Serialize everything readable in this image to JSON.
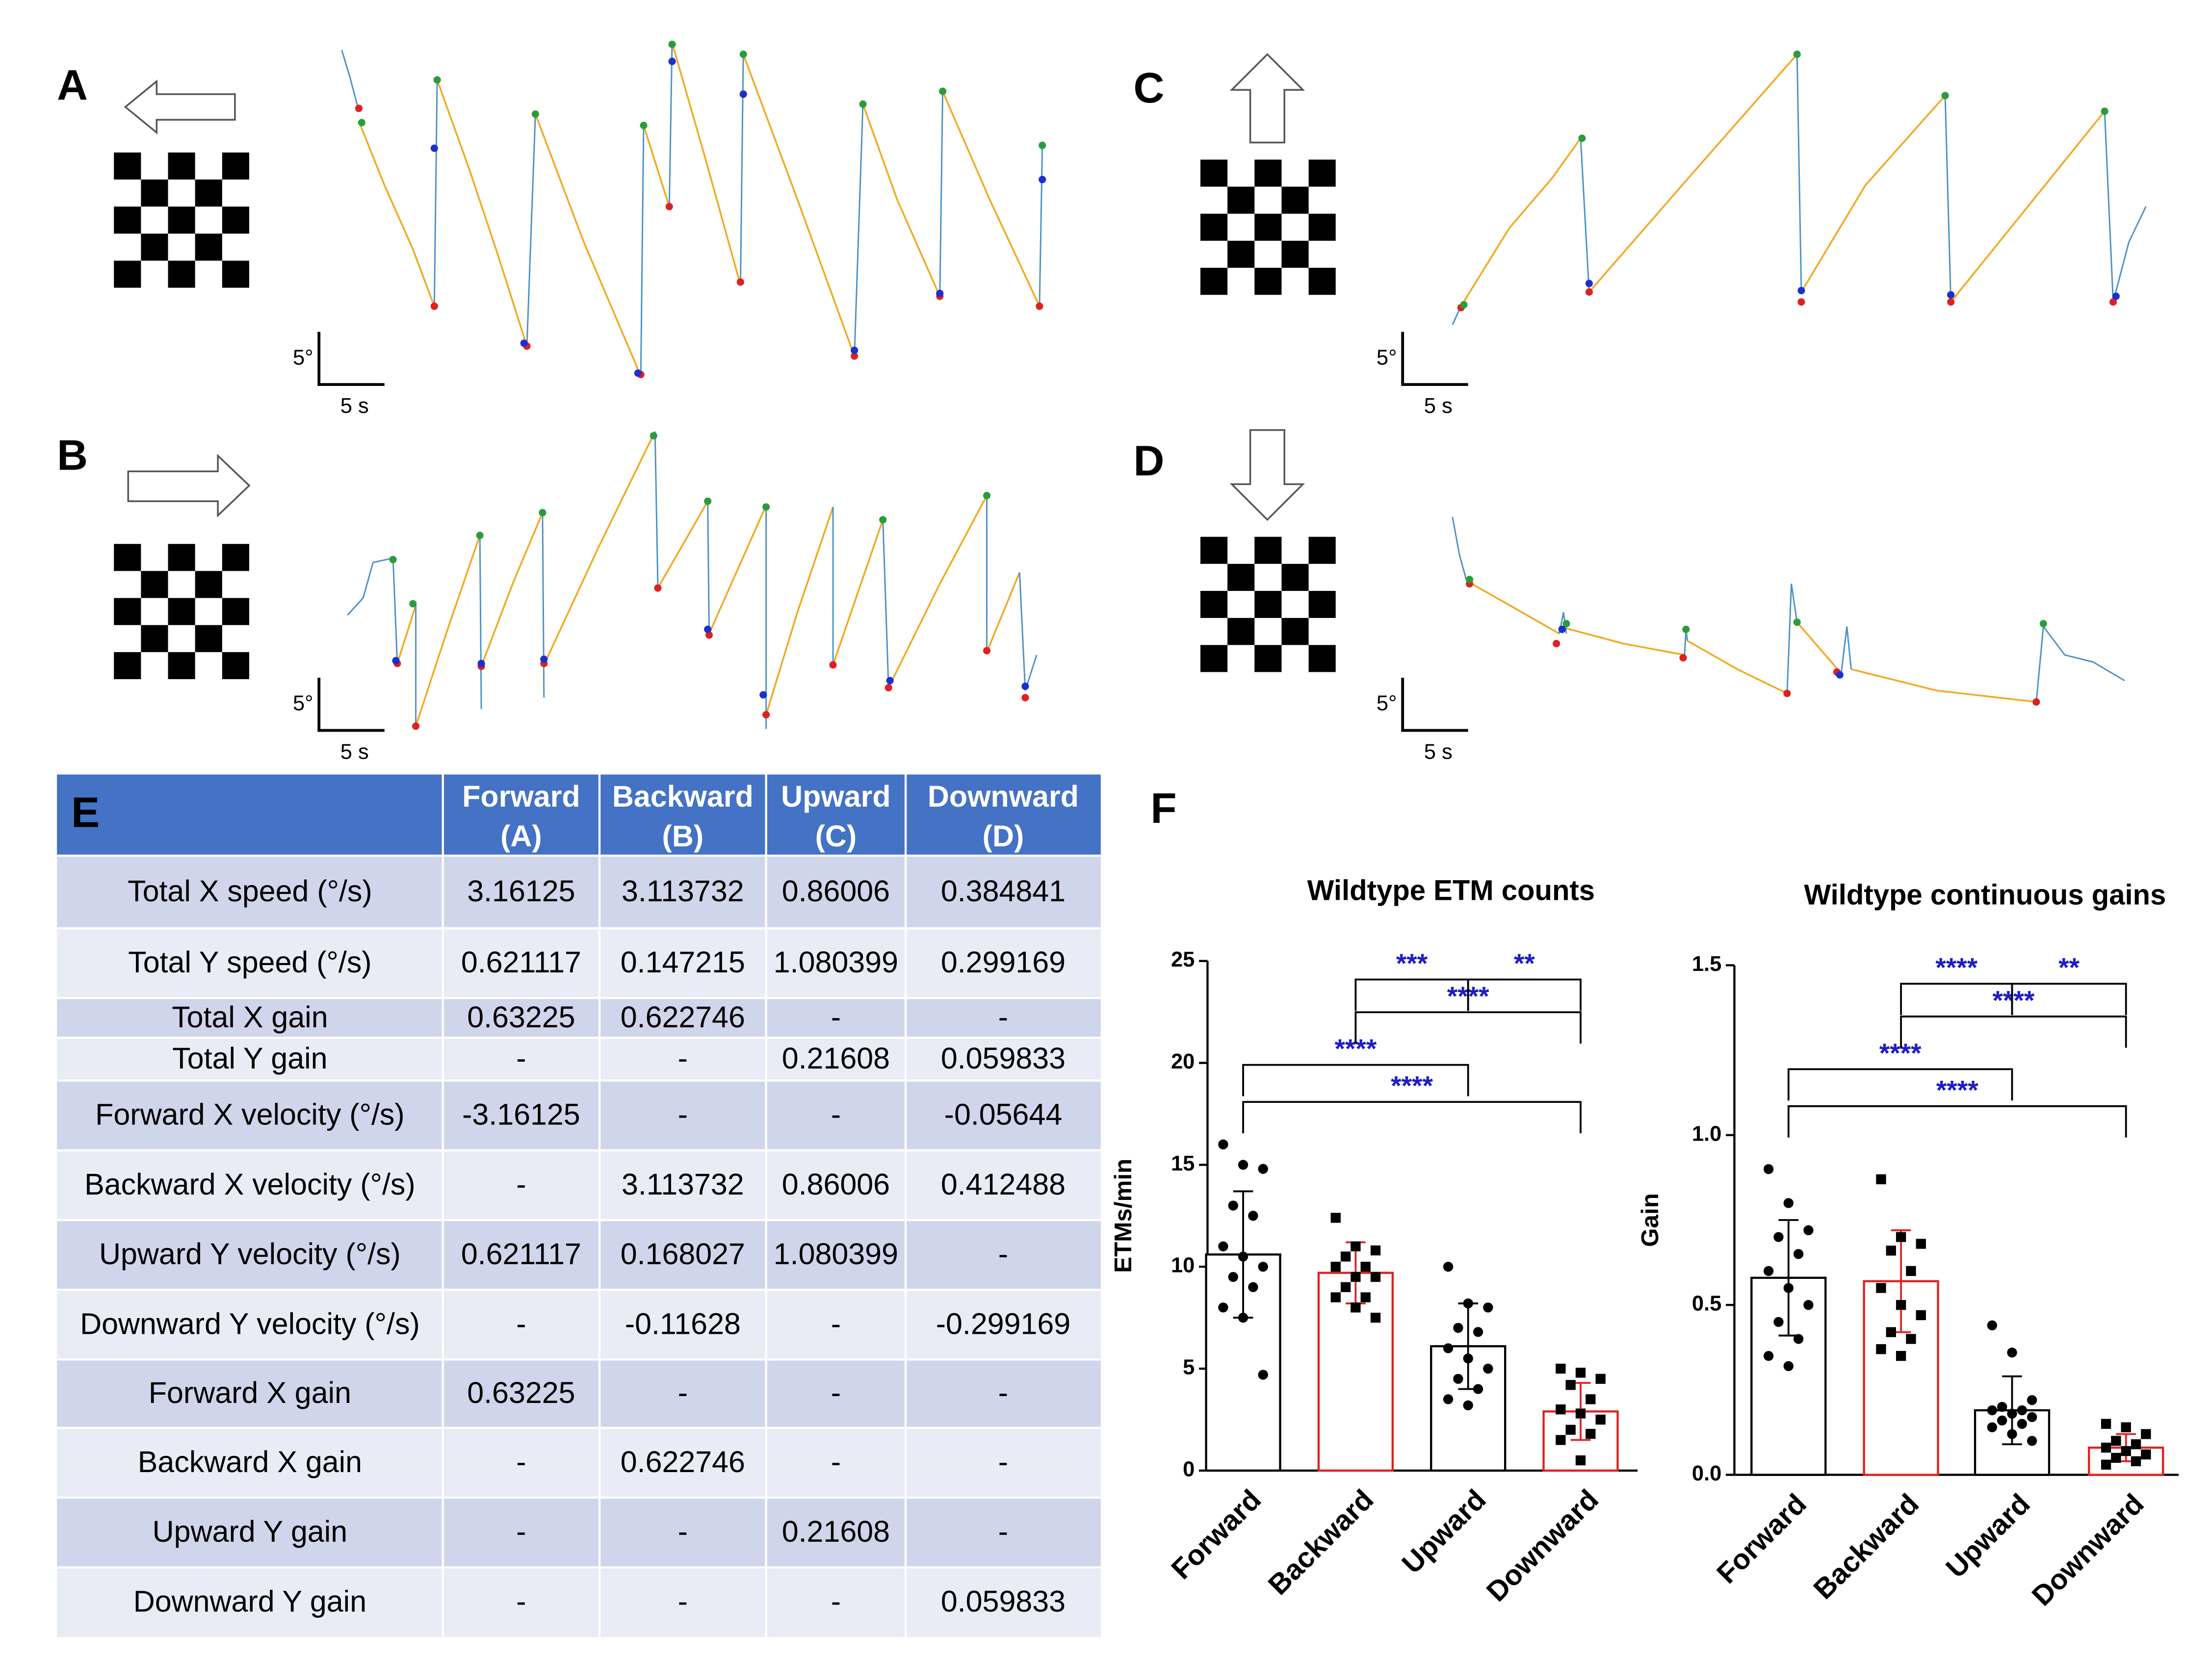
{
  "panels": [
    {
      "letter": "A",
      "scale_y": "5°",
      "scale_x": "5 s"
    },
    {
      "letter": "B",
      "scale_y": "5°",
      "scale_x": "5 s"
    },
    {
      "letter": "C",
      "scale_y": "5°",
      "scale_x": "5 s"
    },
    {
      "letter": "D",
      "scale_y": "5°",
      "scale_x": "5 s"
    }
  ],
  "table": {
    "corner": "E",
    "columns": [
      {
        "name": "Forward",
        "sub": "(A)"
      },
      {
        "name": "Backward",
        "sub": "(B)"
      },
      {
        "name": "Upward",
        "sub": "(C)"
      },
      {
        "name": "Downward",
        "sub": "(D)"
      }
    ],
    "rows": [
      [
        "Total X speed (°/s)",
        "3.16125",
        "3.113732",
        "0.86006",
        "0.384841"
      ],
      [
        "Total Y speed (°/s)",
        "0.621117",
        "0.147215",
        "1.080399",
        "0.299169"
      ],
      [
        "Total X gain",
        "0.63225",
        "0.622746",
        "-",
        "-"
      ],
      [
        "Total Y gain",
        "-",
        "-",
        "0.21608",
        "0.059833"
      ],
      [
        "Forward X velocity (°/s)",
        "-3.16125",
        "-",
        "-",
        "-0.05644"
      ],
      [
        "Backward X velocity (°/s)",
        "-",
        "3.113732",
        "0.86006",
        "0.412488"
      ],
      [
        "Upward Y velocity (°/s)",
        "0.621117",
        "0.168027",
        "1.080399",
        "-"
      ],
      [
        "Downward Y velocity (°/s)",
        "-",
        "-0.11628",
        "-",
        "-0.299169"
      ],
      [
        "Forward X gain",
        "0.63225",
        "-",
        "-",
        "-"
      ],
      [
        "Backward X gain",
        "-",
        "0.622746",
        "-",
        "-"
      ],
      [
        "Upward Y gain",
        "-",
        "-",
        "0.21608",
        "-"
      ],
      [
        "Downward Y gain",
        "-",
        "-",
        "-",
        "0.059833"
      ]
    ]
  },
  "figure_label": "F",
  "chart_data": [
    {
      "type": "bar",
      "title": "Wildtype ETM counts",
      "ylabel": "ETMs/min",
      "categories": [
        "Forward",
        "Backward",
        "Upward",
        "Downward"
      ],
      "values": [
        10.6,
        9.7,
        6.1,
        2.9
      ],
      "errors": [
        3.1,
        1.5,
        2.1,
        1.4
      ],
      "colors": [
        "#000000",
        "#e02020",
        "#000000",
        "#e02020"
      ],
      "markers": [
        "circle",
        "square",
        "circle",
        "square"
      ],
      "points": [
        [
          16,
          15,
          14.8,
          13,
          12.5,
          11,
          10.5,
          10,
          9.5,
          9,
          8,
          7.5,
          4.7
        ],
        [
          12.4,
          11,
          10.8,
          10.5,
          10,
          10,
          9.5,
          9.5,
          9,
          8.5,
          8.5,
          8,
          7.5
        ],
        [
          10,
          8.2,
          8,
          7,
          6.8,
          6,
          5.5,
          5,
          4.5,
          4,
          3.5,
          3.2
        ],
        [
          5,
          4.8,
          4.5,
          4.2,
          3.5,
          3,
          2.8,
          2.5,
          2,
          1.8,
          1.5,
          0.5
        ]
      ],
      "comparisons": [
        {
          "label": "****",
          "between": [
            0,
            3
          ]
        },
        {
          "label": "****",
          "between": [
            0,
            2
          ]
        },
        {
          "label": "****",
          "between": [
            1,
            3
          ]
        },
        {
          "label": "***",
          "between": [
            1,
            2
          ]
        },
        {
          "label": "**",
          "between": [
            2,
            3
          ]
        }
      ],
      "comparison_color": "#1c1cc8",
      "ylim": [
        0,
        25
      ],
      "yticks": [
        0,
        5,
        10,
        15,
        20,
        25
      ]
    },
    {
      "type": "bar",
      "title": "Wildtype continuous gains",
      "ylabel": "Gain",
      "categories": [
        "Forward",
        "Backward",
        "Upward",
        "Downward"
      ],
      "values": [
        0.58,
        0.57,
        0.19,
        0.08
      ],
      "errors": [
        0.17,
        0.15,
        0.1,
        0.04
      ],
      "colors": [
        "#000000",
        "#e02020",
        "#000000",
        "#e02020"
      ],
      "markers": [
        "circle",
        "square",
        "circle",
        "square"
      ],
      "points": [
        [
          0.9,
          0.8,
          0.72,
          0.7,
          0.65,
          0.6,
          0.55,
          0.5,
          0.45,
          0.4,
          0.35,
          0.32
        ],
        [
          0.87,
          0.7,
          0.68,
          0.66,
          0.6,
          0.55,
          0.5,
          0.47,
          0.42,
          0.4,
          0.37,
          0.35
        ],
        [
          0.44,
          0.36,
          0.22,
          0.2,
          0.19,
          0.19,
          0.18,
          0.17,
          0.16,
          0.15,
          0.14,
          0.12,
          0.1
        ],
        [
          0.15,
          0.14,
          0.12,
          0.1,
          0.09,
          0.08,
          0.07,
          0.06,
          0.05,
          0.04,
          0.03
        ]
      ],
      "comparisons": [
        {
          "label": "****",
          "between": [
            0,
            3
          ]
        },
        {
          "label": "****",
          "between": [
            0,
            2
          ]
        },
        {
          "label": "****",
          "between": [
            1,
            3
          ]
        },
        {
          "label": "****",
          "between": [
            1,
            2
          ]
        },
        {
          "label": "**",
          "between": [
            2,
            3
          ]
        }
      ],
      "comparison_color": "#1c1cc8",
      "ylim": [
        0,
        1.5
      ],
      "yticks": [
        {
          "value": 0,
          "label": "0.0"
        },
        0.5,
        {
          "value": 1,
          "label": "1.0"
        },
        1.5
      ]
    }
  ]
}
